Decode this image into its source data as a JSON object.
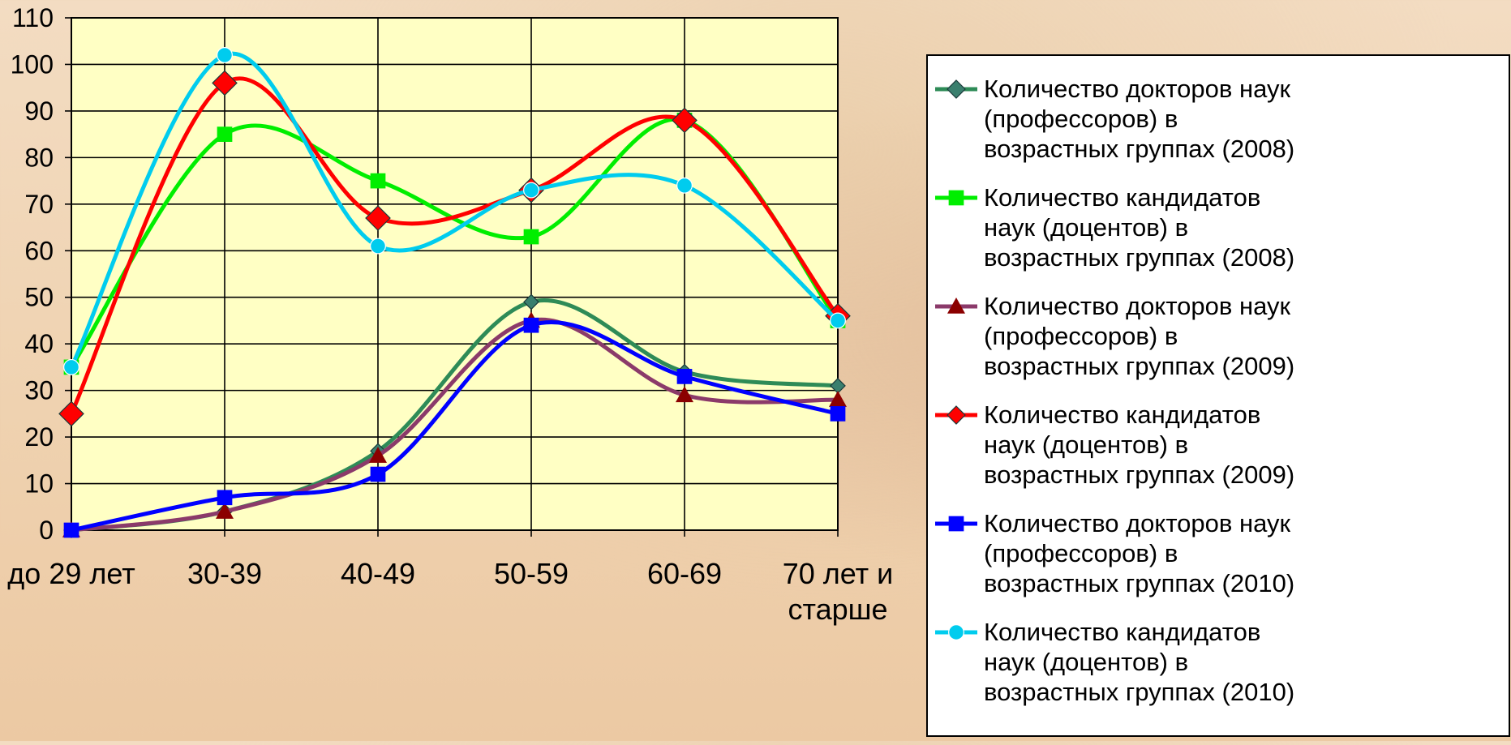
{
  "chart_data": {
    "type": "line",
    "categories": [
      "до 29 лет",
      "30-39",
      "40-49",
      "50-59",
      "60-69",
      "70 лет и старше"
    ],
    "category_lines": [
      [
        "до 29 лет"
      ],
      [
        "30-39"
      ],
      [
        "40-49"
      ],
      [
        "50-59"
      ],
      [
        "60-69"
      ],
      [
        "70 лет и",
        "старше"
      ]
    ],
    "ylim": [
      0,
      110
    ],
    "yticks": [
      0,
      10,
      20,
      30,
      40,
      50,
      60,
      70,
      80,
      90,
      100,
      110
    ],
    "grid": true,
    "plot_background": "#ffffc4",
    "legend_position": "right",
    "series": [
      {
        "name": "Количество докторов наук (профессоров) в возрастных группах (2008)",
        "name_lines": [
          "Количество докторов наук",
          "(профессоров) в",
          "возрастных группах (2008)"
        ],
        "color": "#2e8b57",
        "marker": "diamond",
        "marker_color": "#3a7f6e",
        "values": [
          0,
          4,
          17,
          49,
          34,
          31
        ]
      },
      {
        "name": "Количество кандидатов наук (доцентов) в возрастных группах (2008)",
        "name_lines": [
          "Количество кандидатов",
          "наук (доцентов) в",
          "возрастных группах (2008)"
        ],
        "color": "#00ee00",
        "marker": "square",
        "marker_color": "#00ee00",
        "values": [
          35,
          85,
          75,
          63,
          88,
          45
        ]
      },
      {
        "name": "Количество докторов наук (профессоров) в возрастных группах (2009)",
        "name_lines": [
          "Количество докторов наук",
          "(профессоров) в",
          "возрастных группах (2009)"
        ],
        "color": "#8b3a6a",
        "marker": "triangle",
        "marker_color": "#8b0000",
        "values": [
          0,
          4,
          16,
          45,
          29,
          28
        ]
      },
      {
        "name": "Количество кандидатов наук (доцентов) в возрастных группах (2009)",
        "name_lines": [
          "Количество кандидатов",
          "наук (доцентов) в",
          "возрастных группах (2009)"
        ],
        "color": "#ff0000",
        "marker": "diamond",
        "marker_color": "#ff0000",
        "values": [
          25,
          96,
          67,
          73,
          88,
          46
        ]
      },
      {
        "name": "Количество докторов наук (профессоров) в возрастных группах (2010)",
        "name_lines": [
          "Количество докторов наук",
          "(профессоров) в",
          "возрастных группах (2010)"
        ],
        "color": "#0000ff",
        "marker": "square",
        "marker_color": "#0000ff",
        "values": [
          0,
          7,
          12,
          44,
          33,
          25
        ]
      },
      {
        "name": "Количество кандидатов наук (доцентов) в возрастных группах (2010)",
        "name_lines": [
          "Количество кандидатов",
          "наук (доцентов) в",
          "возрастных группах (2010)"
        ],
        "color": "#00ccee",
        "marker": "circle",
        "marker_color": "#00ccee",
        "values": [
          35,
          102,
          61,
          73,
          74,
          45
        ]
      }
    ]
  }
}
